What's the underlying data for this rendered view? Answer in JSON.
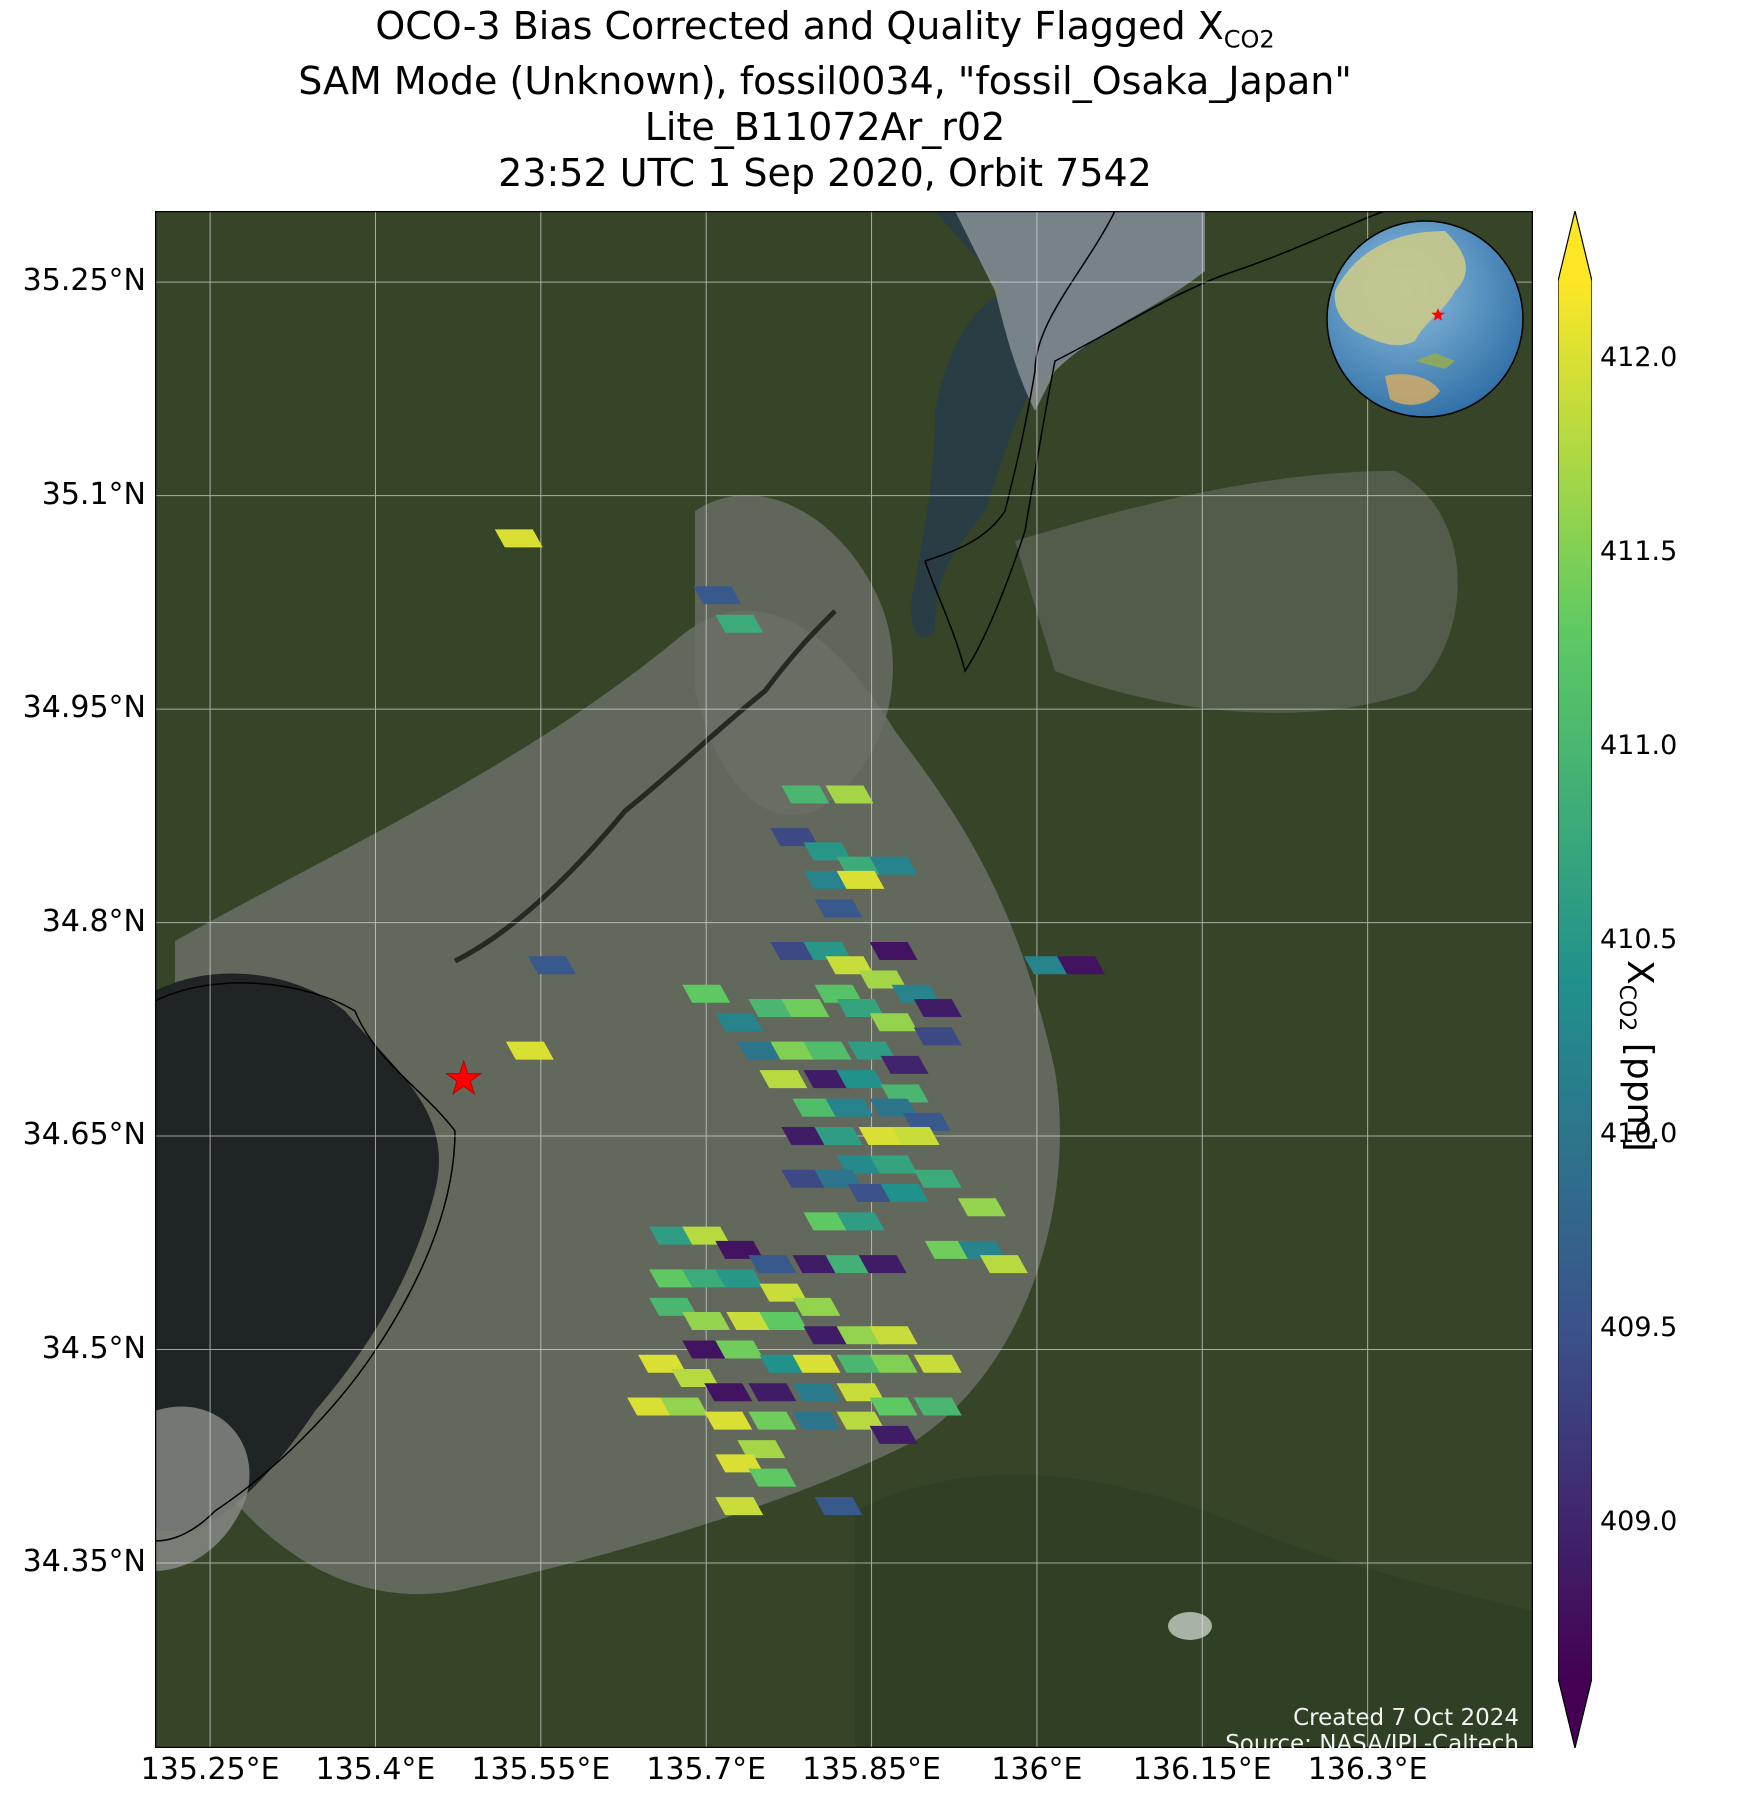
{
  "title": {
    "line1_prefix": "OCO-3 Bias Corrected and Quality Flagged X",
    "line1_sub": "CO2",
    "line2": "SAM Mode (Unknown), fossil0034, \"fossil_Osaka_Japan\"",
    "line3": "Lite_B11072Ar_r02",
    "line4": "23:52 UTC 1 Sep 2020, Orbit 7542"
  },
  "map": {
    "lon_ticks": [
      "135.25°E",
      "135.4°E",
      "135.55°E",
      "135.7°E",
      "135.85°E",
      "136°E",
      "136.15°E",
      "136.3°E"
    ],
    "lat_ticks": [
      "35.25°N",
      "35.1°N",
      "34.95°N",
      "34.8°N",
      "34.65°N",
      "34.5°N",
      "34.35°N"
    ],
    "lon_values": [
      135.25,
      135.4,
      135.55,
      135.7,
      135.85,
      136.0,
      136.15,
      136.3
    ],
    "lat_values": [
      35.25,
      35.1,
      34.95,
      34.8,
      34.65,
      34.5,
      34.35
    ],
    "lon_range": [
      135.2,
      136.45
    ],
    "lat_range": [
      34.22,
      35.3
    ],
    "target_marker": {
      "symbol": "star",
      "color": "#ff0000",
      "lon": 135.48,
      "lat": 34.69
    },
    "background": "satellite imagery (Osaka Bay, Lake Biwa, Kyoto, Nara)"
  },
  "inset_globe": {
    "marker": "star",
    "marker_color": "#ff0000"
  },
  "colorbar": {
    "label_prefix": "X",
    "label_sub": "CO2",
    "label_suffix": " [ppm]",
    "ticks": [
      "412.0",
      "411.5",
      "411.0",
      "410.5",
      "410.0",
      "409.5",
      "409.0"
    ],
    "tick_values": [
      412.0,
      411.5,
      411.0,
      410.5,
      410.0,
      409.5,
      409.0
    ],
    "range": [
      408.6,
      412.2
    ],
    "colormap": "viridis",
    "colors": [
      "#440154",
      "#3b528b",
      "#21918c",
      "#5ec962",
      "#fde725"
    ]
  },
  "credit": {
    "line1": "Created 7 Oct 2024",
    "line2": "Source: NASA/JPL-Caltech"
  },
  "soundings": [
    {
      "lon": 135.53,
      "lat": 35.07,
      "v": 412.0
    },
    {
      "lon": 135.71,
      "lat": 35.03,
      "v": 409.6
    },
    {
      "lon": 135.73,
      "lat": 35.01,
      "v": 410.8
    },
    {
      "lon": 135.79,
      "lat": 34.89,
      "v": 411.0
    },
    {
      "lon": 135.83,
      "lat": 34.89,
      "v": 411.7
    },
    {
      "lon": 135.78,
      "lat": 34.86,
      "v": 409.4
    },
    {
      "lon": 135.81,
      "lat": 34.85,
      "v": 410.5
    },
    {
      "lon": 135.84,
      "lat": 34.84,
      "v": 410.8
    },
    {
      "lon": 135.87,
      "lat": 34.84,
      "v": 410.2
    },
    {
      "lon": 135.81,
      "lat": 34.83,
      "v": 410.2
    },
    {
      "lon": 135.84,
      "lat": 34.83,
      "v": 412.0
    },
    {
      "lon": 135.82,
      "lat": 34.81,
      "v": 409.6
    },
    {
      "lon": 135.78,
      "lat": 34.78,
      "v": 409.4
    },
    {
      "lon": 135.81,
      "lat": 34.78,
      "v": 410.5
    },
    {
      "lon": 135.83,
      "lat": 34.77,
      "v": 411.9
    },
    {
      "lon": 135.87,
      "lat": 34.78,
      "v": 408.8
    },
    {
      "lon": 135.86,
      "lat": 34.76,
      "v": 411.7
    },
    {
      "lon": 135.89,
      "lat": 34.75,
      "v": 410.2
    },
    {
      "lon": 135.91,
      "lat": 34.74,
      "v": 408.9
    },
    {
      "lon": 136.01,
      "lat": 34.77,
      "v": 410.2
    },
    {
      "lon": 136.04,
      "lat": 34.77,
      "v": 408.8
    },
    {
      "lon": 135.56,
      "lat": 34.77,
      "v": 409.6
    },
    {
      "lon": 135.54,
      "lat": 34.71,
      "v": 412.0
    },
    {
      "lon": 135.7,
      "lat": 34.75,
      "v": 411.3
    },
    {
      "lon": 135.73,
      "lat": 34.73,
      "v": 410.2
    },
    {
      "lon": 135.76,
      "lat": 34.74,
      "v": 411.0
    },
    {
      "lon": 135.79,
      "lat": 34.74,
      "v": 411.4
    },
    {
      "lon": 135.82,
      "lat": 34.75,
      "v": 411.2
    },
    {
      "lon": 135.84,
      "lat": 34.74,
      "v": 410.7
    },
    {
      "lon": 135.87,
      "lat": 34.73,
      "v": 411.6
    },
    {
      "lon": 135.91,
      "lat": 34.72,
      "v": 409.4
    },
    {
      "lon": 135.75,
      "lat": 34.71,
      "v": 410.0
    },
    {
      "lon": 135.78,
      "lat": 34.71,
      "v": 411.5
    },
    {
      "lon": 135.81,
      "lat": 34.71,
      "v": 411.1
    },
    {
      "lon": 135.85,
      "lat": 34.71,
      "v": 410.6
    },
    {
      "lon": 135.88,
      "lat": 34.7,
      "v": 409.0
    },
    {
      "lon": 135.77,
      "lat": 34.69,
      "v": 411.8
    },
    {
      "lon": 135.81,
      "lat": 34.69,
      "v": 408.9
    },
    {
      "lon": 135.84,
      "lat": 34.69,
      "v": 410.4
    },
    {
      "lon": 135.88,
      "lat": 34.68,
      "v": 411.0
    },
    {
      "lon": 135.8,
      "lat": 34.67,
      "v": 411.1
    },
    {
      "lon": 135.83,
      "lat": 34.67,
      "v": 410.2
    },
    {
      "lon": 135.87,
      "lat": 34.67,
      "v": 410.0
    },
    {
      "lon": 135.9,
      "lat": 34.66,
      "v": 409.6
    },
    {
      "lon": 135.79,
      "lat": 34.65,
      "v": 408.9
    },
    {
      "lon": 135.82,
      "lat": 34.65,
      "v": 410.6
    },
    {
      "lon": 135.86,
      "lat": 34.65,
      "v": 412.0
    },
    {
      "lon": 135.89,
      "lat": 34.65,
      "v": 411.9
    },
    {
      "lon": 135.84,
      "lat": 34.63,
      "v": 410.3
    },
    {
      "lon": 135.87,
      "lat": 34.63,
      "v": 410.7
    },
    {
      "lon": 135.91,
      "lat": 34.62,
      "v": 410.8
    },
    {
      "lon": 135.79,
      "lat": 34.62,
      "v": 409.4
    },
    {
      "lon": 135.82,
      "lat": 34.62,
      "v": 410.0
    },
    {
      "lon": 135.85,
      "lat": 34.61,
      "v": 409.5
    },
    {
      "lon": 135.88,
      "lat": 34.61,
      "v": 410.4
    },
    {
      "lon": 135.95,
      "lat": 34.6,
      "v": 411.6
    },
    {
      "lon": 135.81,
      "lat": 34.59,
      "v": 411.3
    },
    {
      "lon": 135.84,
      "lat": 34.59,
      "v": 410.6
    },
    {
      "lon": 135.92,
      "lat": 34.57,
      "v": 411.4
    },
    {
      "lon": 135.95,
      "lat": 34.57,
      "v": 410.2
    },
    {
      "lon": 135.97,
      "lat": 34.56,
      "v": 411.8
    },
    {
      "lon": 135.8,
      "lat": 34.56,
      "v": 408.9
    },
    {
      "lon": 135.83,
      "lat": 34.56,
      "v": 410.9
    },
    {
      "lon": 135.86,
      "lat": 34.56,
      "v": 408.9
    },
    {
      "lon": 135.67,
      "lat": 34.58,
      "v": 410.6
    },
    {
      "lon": 135.7,
      "lat": 34.58,
      "v": 411.8
    },
    {
      "lon": 135.73,
      "lat": 34.57,
      "v": 408.8
    },
    {
      "lon": 135.76,
      "lat": 34.56,
      "v": 409.6
    },
    {
      "lon": 135.67,
      "lat": 34.55,
      "v": 411.3
    },
    {
      "lon": 135.7,
      "lat": 34.55,
      "v": 410.8
    },
    {
      "lon": 135.73,
      "lat": 34.55,
      "v": 410.5
    },
    {
      "lon": 135.77,
      "lat": 34.54,
      "v": 411.9
    },
    {
      "lon": 135.8,
      "lat": 34.53,
      "v": 411.6
    },
    {
      "lon": 135.67,
      "lat": 34.53,
      "v": 411.0
    },
    {
      "lon": 135.7,
      "lat": 34.52,
      "v": 411.6
    },
    {
      "lon": 135.74,
      "lat": 34.52,
      "v": 411.9
    },
    {
      "lon": 135.77,
      "lat": 34.52,
      "v": 411.3
    },
    {
      "lon": 135.81,
      "lat": 34.51,
      "v": 408.9
    },
    {
      "lon": 135.84,
      "lat": 34.51,
      "v": 411.6
    },
    {
      "lon": 135.87,
      "lat": 34.51,
      "v": 411.9
    },
    {
      "lon": 135.7,
      "lat": 34.5,
      "v": 408.8
    },
    {
      "lon": 135.73,
      "lat": 34.5,
      "v": 411.4
    },
    {
      "lon": 135.77,
      "lat": 34.49,
      "v": 410.4
    },
    {
      "lon": 135.8,
      "lat": 34.49,
      "v": 412.0
    },
    {
      "lon": 135.84,
      "lat": 34.49,
      "v": 411.0
    },
    {
      "lon": 135.87,
      "lat": 34.49,
      "v": 411.5
    },
    {
      "lon": 135.91,
      "lat": 34.49,
      "v": 411.9
    },
    {
      "lon": 135.66,
      "lat": 34.49,
      "v": 412.0
    },
    {
      "lon": 135.69,
      "lat": 34.48,
      "v": 411.8
    },
    {
      "lon": 135.72,
      "lat": 34.47,
      "v": 408.8
    },
    {
      "lon": 135.76,
      "lat": 34.47,
      "v": 408.9
    },
    {
      "lon": 135.8,
      "lat": 34.47,
      "v": 410.1
    },
    {
      "lon": 135.84,
      "lat": 34.47,
      "v": 411.9
    },
    {
      "lon": 135.87,
      "lat": 34.46,
      "v": 411.3
    },
    {
      "lon": 135.91,
      "lat": 34.46,
      "v": 411.0
    },
    {
      "lon": 135.65,
      "lat": 34.46,
      "v": 412.0
    },
    {
      "lon": 135.68,
      "lat": 34.46,
      "v": 411.6
    },
    {
      "lon": 135.72,
      "lat": 34.45,
      "v": 412.0
    },
    {
      "lon": 135.76,
      "lat": 34.45,
      "v": 411.4
    },
    {
      "lon": 135.8,
      "lat": 34.45,
      "v": 410.0
    },
    {
      "lon": 135.84,
      "lat": 34.45,
      "v": 411.8
    },
    {
      "lon": 135.87,
      "lat": 34.44,
      "v": 408.9
    },
    {
      "lon": 135.75,
      "lat": 34.43,
      "v": 411.7
    },
    {
      "lon": 135.73,
      "lat": 34.42,
      "v": 412.0
    },
    {
      "lon": 135.76,
      "lat": 34.41,
      "v": 411.3
    },
    {
      "lon": 135.73,
      "lat": 34.39,
      "v": 411.9
    },
    {
      "lon": 135.82,
      "lat": 34.39,
      "v": 409.6
    }
  ]
}
